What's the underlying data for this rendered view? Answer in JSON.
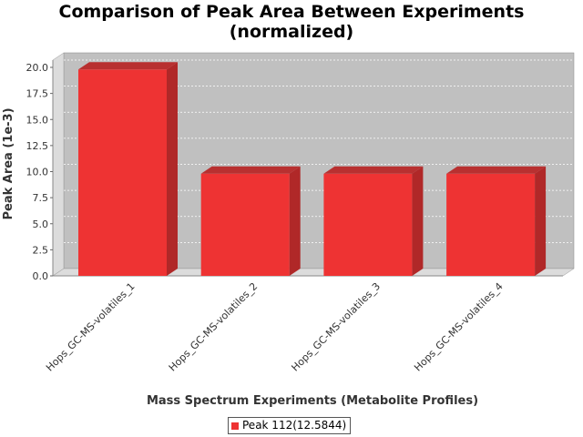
{
  "chart_data": {
    "type": "bar",
    "title": "Comparison of Peak Area Between Experiments\n(normalized)",
    "xlabel": "Mass Spectrum Experiments (Metabolite Profiles)",
    "ylabel": "Peak Area (1e-3)",
    "categories": [
      "Hops_GC-MS-volatiles_1",
      "Hops_GC-MS-volatiles_2",
      "Hops_GC-MS-volatiles_3",
      "Hops_GC-MS-volatiles_4"
    ],
    "series": [
      {
        "name": "Peak 112(12.5844)",
        "values": [
          19.8,
          9.8,
          9.8,
          9.8
        ]
      }
    ],
    "ylim": [
      0,
      20
    ],
    "yticks": [
      "0.0",
      "2.5",
      "5.0",
      "7.5",
      "10.0",
      "12.5",
      "15.0",
      "17.5",
      "20.0"
    ],
    "grid": true,
    "legend": "bottom",
    "colors": {
      "bar": "#ee3333",
      "bar_top": "#b83030",
      "bar_side": "#b02828",
      "plot_bg": "#c0c0c0",
      "wall_bg": "#dcdcdc"
    }
  }
}
